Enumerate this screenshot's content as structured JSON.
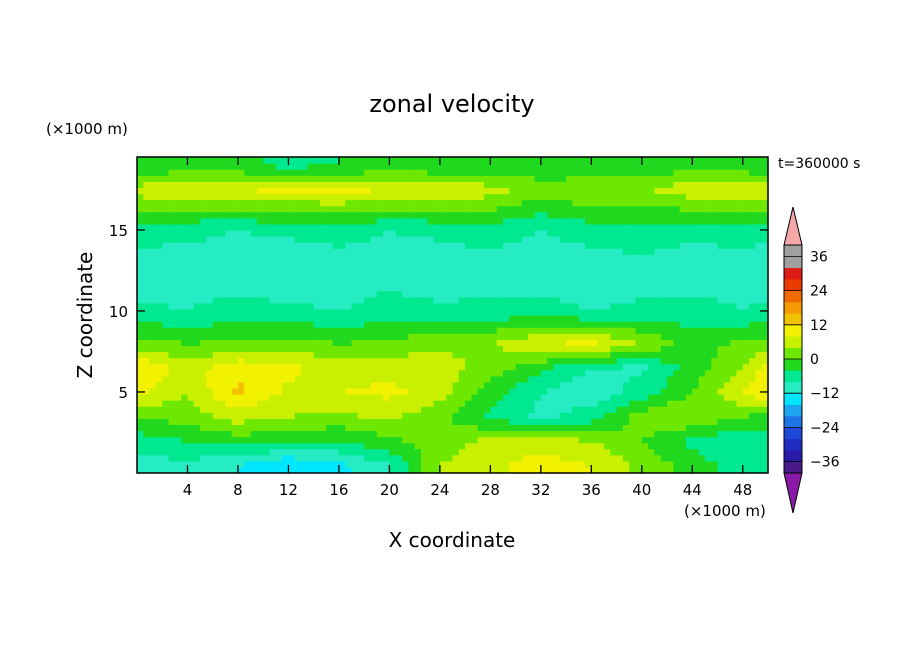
{
  "chart_data": {
    "type": "heatmap",
    "title": "zonal velocity",
    "xlabel": "X coordinate",
    "ylabel": "Z coordinate",
    "x_unit": "(×1000 m)",
    "y_unit": "(×1000 m)",
    "time_label": "t=360000 s",
    "xlim": [
      0,
      50
    ],
    "ylim": [
      0,
      19.5
    ],
    "x_ticks": [
      4,
      8,
      12,
      16,
      20,
      24,
      28,
      32,
      36,
      40,
      44,
      48
    ],
    "y_ticks": [
      5,
      10,
      15
    ],
    "colorbar": {
      "levels": [
        -40,
        -36,
        -32,
        -28,
        -24,
        -20,
        -16,
        -12,
        -8,
        -4,
        0,
        4,
        8,
        12,
        16,
        20,
        24,
        28,
        32,
        36,
        40
      ],
      "tick_labels": [
        -36,
        -24,
        -12,
        0,
        12,
        24,
        36
      ],
      "colors": [
        "#4a1a8c",
        "#2a1aa8",
        "#1f2ec0",
        "#1f48d8",
        "#1f74e6",
        "#1aa6f0",
        "#00e6ff",
        "#26ecc4",
        "#00e890",
        "#20d81e",
        "#6ee800",
        "#c8f000",
        "#f2f200",
        "#f2c200",
        "#f59a00",
        "#f06a00",
        "#e83c00",
        "#e01a14",
        "#a0a0a0",
        "#a0a0a0"
      ],
      "under_color": "#8a1aa8",
      "over_color": "#f4a8a8"
    },
    "z_rows": [
      19,
      17.5,
      15,
      12.5,
      10,
      8,
      6.5,
      5,
      3.5,
      2,
      0.5
    ],
    "x_cols": [
      0,
      4,
      8,
      12,
      16,
      20,
      24,
      28,
      32,
      36,
      40,
      44,
      48,
      50
    ],
    "values": [
      [
        -4,
        -2,
        -3,
        -5,
        -4,
        -3,
        -3,
        -4,
        -3,
        -4,
        -3,
        -2,
        -3,
        -4
      ],
      [
        6,
        7,
        8,
        9,
        9,
        8,
        7,
        6,
        2,
        4,
        3,
        7,
        8,
        7
      ],
      [
        -6,
        -7,
        -8,
        -7,
        -6,
        -8,
        -7,
        -6,
        -8,
        -6,
        -5,
        -7,
        -6,
        -7
      ],
      [
        -11,
        -10,
        -11,
        -12,
        -11,
        -10,
        -11,
        -10,
        -11,
        -11,
        -10,
        -11,
        -10,
        -11
      ],
      [
        -7,
        -8,
        -6,
        -7,
        -8,
        -6,
        -7,
        -7,
        -6,
        -8,
        -7,
        -6,
        -8,
        -7
      ],
      [
        2,
        0,
        1,
        2,
        0,
        1,
        3,
        4,
        8,
        9,
        4,
        -2,
        1,
        2
      ],
      [
        12,
        6,
        11,
        9,
        6,
        7,
        6,
        2,
        -3,
        -8,
        -9,
        -2,
        4,
        10
      ],
      [
        9,
        4,
        13,
        7,
        8,
        9,
        6,
        -2,
        -8,
        -11,
        -6,
        0,
        8,
        12
      ],
      [
        0,
        2,
        6,
        4,
        3,
        5,
        1,
        -5,
        -9,
        -6,
        2,
        4,
        0,
        -2
      ],
      [
        -6,
        -4,
        -2,
        -3,
        -4,
        -1,
        2,
        5,
        6,
        4,
        0,
        -5,
        -8,
        -6
      ],
      [
        -10,
        -9,
        -12,
        -16,
        -13,
        -8,
        4,
        7,
        10,
        8,
        3,
        -2,
        -6,
        -8
      ]
    ]
  }
}
